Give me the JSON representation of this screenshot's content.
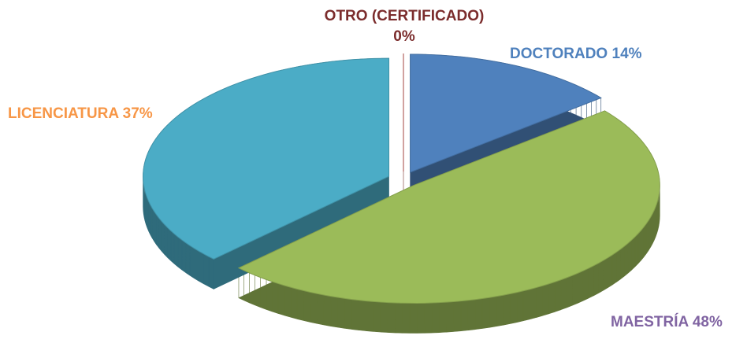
{
  "chart_data": {
    "type": "pie",
    "three_d": true,
    "exploded": true,
    "categories": [
      "DOCTORADO",
      "MAESTRÍA",
      "LICENCIATURA",
      "OTRO (CERTIFICADO)"
    ],
    "values": [
      14,
      48,
      37,
      0
    ],
    "value_labels": [
      "14%",
      "48%",
      "37%",
      "0%"
    ],
    "colors": [
      "#4f81bd",
      "#9bbb59",
      "#4bacc6",
      "#c0504d"
    ]
  }
}
